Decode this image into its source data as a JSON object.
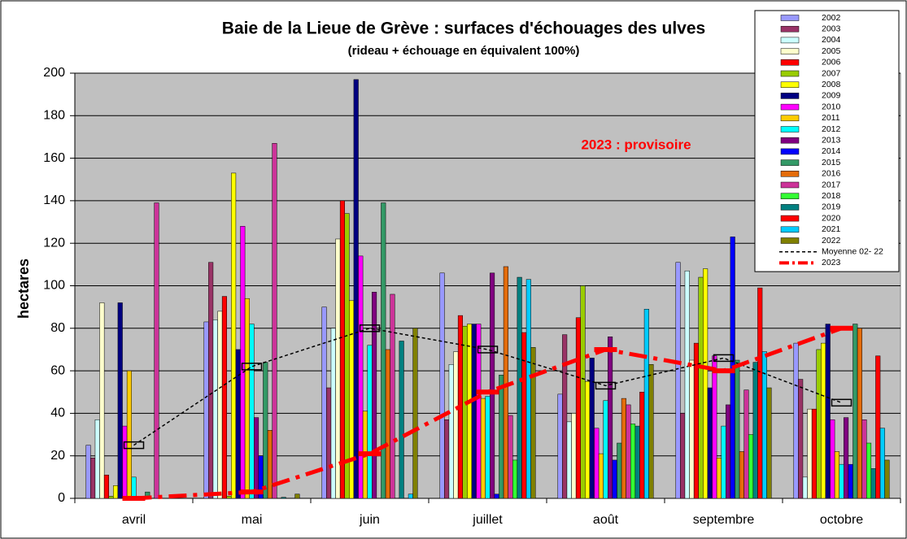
{
  "chart_data": {
    "type": "bar",
    "title": "Baie de la Lieue de Grève : surfaces d'échouages des ulves",
    "subtitle": "(rideau + échouage en équivalent 100%)",
    "y_label": "hectares",
    "annotation": "2023 : provisoire",
    "categories": [
      "avril",
      "mai",
      "juin",
      "juillet",
      "août",
      "septembre",
      "octobre"
    ],
    "ylim": [
      0,
      200
    ],
    "yticks": [
      0,
      20,
      40,
      60,
      80,
      100,
      120,
      140,
      160,
      180,
      200
    ],
    "grid": true,
    "legend": "upper right",
    "series": [
      {
        "name": "2002",
        "color": "#9999ff",
        "values": [
          25,
          83,
          90,
          106,
          49,
          111,
          73
        ]
      },
      {
        "name": "2003",
        "color": "#993366",
        "values": [
          19,
          111,
          52,
          37,
          77,
          40,
          56
        ]
      },
      {
        "name": "2004",
        "color": "#ccffff",
        "values": [
          37,
          84,
          80,
          63,
          36,
          107,
          10
        ]
      },
      {
        "name": "2005",
        "color": "#ffffcc",
        "values": [
          92,
          88,
          122,
          69,
          40,
          65,
          42
        ]
      },
      {
        "name": "2006",
        "color": "#ff0000",
        "values": [
          11,
          95,
          140,
          86,
          85,
          73,
          42
        ]
      },
      {
        "name": "2007",
        "color": "#99cc00",
        "values": [
          1,
          1,
          134,
          81,
          100,
          104,
          70
        ]
      },
      {
        "name": "2008",
        "color": "#ffff00",
        "values": [
          6,
          153,
          93,
          82,
          55,
          108,
          73
        ]
      },
      {
        "name": "2009",
        "color": "#000080",
        "values": [
          92,
          70,
          197,
          82,
          66,
          52,
          82
        ]
      },
      {
        "name": "2010",
        "color": "#ff00ff",
        "values": [
          34,
          128,
          114,
          82,
          33,
          67,
          37
        ]
      },
      {
        "name": "2011",
        "color": "#ffcc00",
        "values": [
          60,
          94,
          41,
          47,
          21,
          19,
          22
        ]
      },
      {
        "name": "2012",
        "color": "#00ffff",
        "values": [
          10,
          82,
          72,
          48,
          46,
          34,
          16
        ]
      },
      {
        "name": "2013",
        "color": "#800080",
        "values": [
          0,
          38,
          97,
          106,
          76,
          44,
          38
        ]
      },
      {
        "name": "2014",
        "color": "#0000ff",
        "values": [
          0,
          20,
          0,
          2,
          18,
          123,
          16
        ]
      },
      {
        "name": "2015",
        "color": "#339966",
        "values": [
          3,
          64,
          139,
          58,
          26,
          65,
          82
        ]
      },
      {
        "name": "2016",
        "color": "#e46c0a",
        "values": [
          0,
          32,
          70,
          109,
          47,
          22,
          80
        ]
      },
      {
        "name": "2017",
        "color": "#cc3399",
        "values": [
          139,
          167,
          96,
          39,
          44,
          51,
          37
        ]
      },
      {
        "name": "2018",
        "color": "#33ff33",
        "values": [
          0,
          0,
          0,
          18,
          35,
          30,
          26
        ]
      },
      {
        "name": "2019",
        "color": "#008080",
        "values": [
          0,
          0.5,
          74,
          104,
          34,
          64,
          14
        ]
      },
      {
        "name": "2020",
        "color": "#ff0000",
        "values": [
          0,
          0,
          0,
          78,
          50,
          99,
          67
        ]
      },
      {
        "name": "2021",
        "color": "#00ccff",
        "values": [
          0,
          0,
          2,
          103,
          89,
          69,
          33
        ]
      },
      {
        "name": "2022",
        "color": "#808000",
        "values": [
          0,
          2,
          80,
          71,
          63,
          52,
          18
        ]
      },
      {
        "name": "Moyenne 02- 22",
        "color": "#000000",
        "type": "line",
        "style": "dashed",
        "values": [
          25,
          62,
          80,
          70,
          53,
          66,
          45
        ]
      },
      {
        "name": "2023",
        "color": "#ff0000",
        "type": "line",
        "style": "dash-dot",
        "values": [
          0,
          3,
          21,
          50,
          70,
          60,
          80
        ]
      }
    ]
  }
}
